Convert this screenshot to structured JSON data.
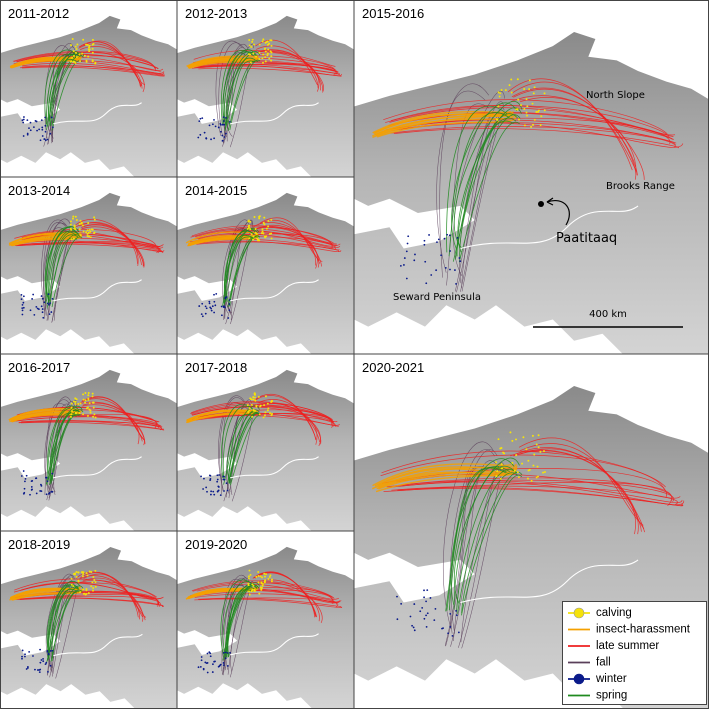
{
  "panels": [
    {
      "label": "2011-2012"
    },
    {
      "label": "2012-2013"
    },
    {
      "label": "2015-2016"
    },
    {
      "label": "2013-2014"
    },
    {
      "label": "2014-2015"
    },
    {
      "label": "2016-2017"
    },
    {
      "label": "2017-2018"
    },
    {
      "label": "2020-2021"
    },
    {
      "label": "2018-2019"
    },
    {
      "label": "2019-2020"
    }
  ],
  "annotations": {
    "north_slope": "North Slope",
    "brooks_range": "Brooks Range",
    "paatitaaq": "Paatitaaq",
    "seward_peninsula": "Seward Peninsula",
    "scale_bar": "400 km"
  },
  "legend": [
    {
      "name": "calving",
      "color": "#f5e20a"
    },
    {
      "name": "insect-harassment",
      "color": "#f5a000"
    },
    {
      "name": "late summer",
      "color": "#ee2020"
    },
    {
      "name": "fall",
      "color": "#5a3f5a"
    },
    {
      "name": "winter",
      "color": "#0a1a8a"
    },
    {
      "name": "spring",
      "color": "#1f8a1f"
    }
  ]
}
